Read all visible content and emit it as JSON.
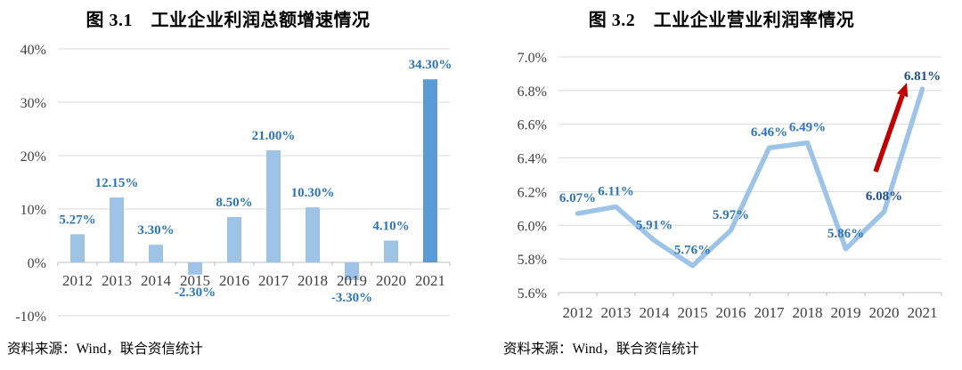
{
  "chart_data": [
    {
      "type": "bar",
      "title": "图 3.1　工业企业利润总额增速情况",
      "source": "资料来源：Wind，联合资信统计",
      "categories": [
        "2012",
        "2013",
        "2014",
        "2015",
        "2016",
        "2017",
        "2018",
        "2019",
        "2020",
        "2021"
      ],
      "values": [
        5.27,
        12.15,
        3.3,
        -2.3,
        8.5,
        21.0,
        10.3,
        -3.3,
        4.1,
        34.3
      ],
      "labels": [
        "5.27%",
        "12.15%",
        "3.30%",
        "-2.30%",
        "8.50%",
        "21.00%",
        "10.30%",
        "-3.30%",
        "4.10%",
        "34.30%"
      ],
      "ylim": [
        -10,
        40
      ],
      "yticks": [
        {
          "v": 40,
          "label": "40%"
        },
        {
          "v": 30,
          "label": "30%"
        },
        {
          "v": 20,
          "label": "20%"
        },
        {
          "v": 10,
          "label": "10%"
        },
        {
          "v": 0,
          "label": "0%"
        },
        {
          "v": -10,
          "label": "-10%"
        }
      ],
      "grid": true,
      "legend": "none",
      "highlight_index": 9,
      "colors": {
        "bar": "#9DC3E6",
        "highlight": "#5B9BD5",
        "label": "#2E75B6",
        "gridline": "#D9D9D9",
        "axis": "#BFBFBF"
      }
    },
    {
      "type": "line",
      "title": "图 3.2　工业企业营业利润率情况",
      "source": "资料来源：Wind，联合资信统计",
      "categories": [
        "2012",
        "2013",
        "2014",
        "2015",
        "2016",
        "2017",
        "2018",
        "2019",
        "2020",
        "2021"
      ],
      "values": [
        6.07,
        6.11,
        5.91,
        5.76,
        5.97,
        6.46,
        6.49,
        5.86,
        6.08,
        6.81
      ],
      "labels": [
        "6.07%",
        "6.11%",
        "5.91%",
        "5.76%",
        "5.97%",
        "6.46%",
        "6.49%",
        "5.86%",
        "6.08%",
        "6.81%"
      ],
      "ylim": [
        5.6,
        7.0
      ],
      "yticks": [
        {
          "v": 7.0,
          "label": "7.0%"
        },
        {
          "v": 6.8,
          "label": "6.8%"
        },
        {
          "v": 6.6,
          "label": "6.6%"
        },
        {
          "v": 6.4,
          "label": "6.4%"
        },
        {
          "v": 6.2,
          "label": "6.2%"
        },
        {
          "v": 6.0,
          "label": "6.0%"
        },
        {
          "v": 5.8,
          "label": "5.8%"
        },
        {
          "v": 5.6,
          "label": "5.6%"
        }
      ],
      "grid": true,
      "legend": "none",
      "emphasis_indices": [
        8,
        9
      ],
      "annotation": {
        "type": "arrow",
        "meaning": "highlight-jump-2020-to-2021",
        "color": "#C00000"
      },
      "colors": {
        "line": "#9DC3E6",
        "label": "#2E75B6",
        "emphasis_label": "#1F4E8C",
        "arrow": "#C00000",
        "gridline": "#D9D9D9",
        "axis": "#BFBFBF"
      }
    }
  ]
}
